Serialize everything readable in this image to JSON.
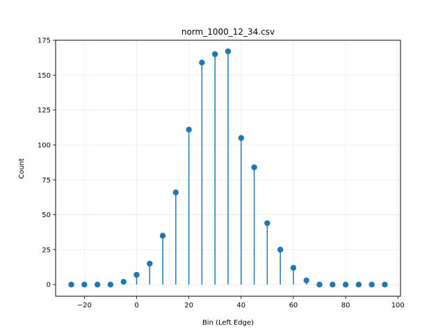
{
  "chart_data": {
    "type": "stem",
    "title": "norm_1000_12_34.csv",
    "xlabel": "Bin (Left Edge)",
    "ylabel": "Count",
    "xlim": [
      -31,
      101
    ],
    "ylim": [
      -8.35,
      175
    ],
    "xticks": [
      -20,
      0,
      20,
      40,
      60,
      80,
      100
    ],
    "xtick_labels": [
      "−20",
      "0",
      "20",
      "40",
      "60",
      "80",
      "100"
    ],
    "yticks": [
      0,
      25,
      50,
      75,
      100,
      125,
      150,
      175
    ],
    "ytick_labels": [
      "0",
      "25",
      "50",
      "75",
      "100",
      "125",
      "150",
      "175"
    ],
    "grid": true,
    "color": "#1f77b4",
    "x": [
      -25,
      -20,
      -15,
      -10,
      -5,
      0,
      5,
      10,
      15,
      20,
      25,
      30,
      35,
      40,
      45,
      50,
      55,
      60,
      65,
      70,
      75,
      80,
      85,
      90,
      95
    ],
    "values": [
      0,
      0,
      0,
      0,
      2,
      7,
      15,
      35,
      66,
      111,
      159,
      165,
      167,
      105,
      84,
      44,
      25,
      12,
      3,
      0,
      0,
      0,
      0,
      0,
      0
    ]
  }
}
